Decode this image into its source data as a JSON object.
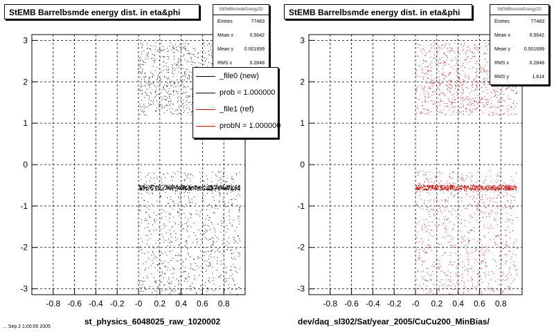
{
  "date_stamp": "... Sep  2 1:00:00 2005",
  "chart_data": [
    {
      "type": "scatter",
      "title": "StEMB Barrelbsmde energy dist. in eta&phi",
      "xlabel": "st_physics_6048025_raw_1020002",
      "ylabel": "",
      "xlim": [
        -1,
        1
      ],
      "ylim": [
        -3.14,
        3.14
      ],
      "x_ticks": [
        "-0.8",
        "-0.6",
        "-0.4",
        "-0.2",
        "-0",
        "0.2",
        "0.4",
        "0.6",
        "0.8"
      ],
      "y_ticks": [
        "-3",
        "-2",
        "-1",
        "0",
        "1",
        "2",
        "3"
      ],
      "grid": true,
      "marker_color": "#000000",
      "stats": {
        "name": "StEMBbsmdeEnergy2D",
        "rows": [
          {
            "label": "Entries",
            "value": "77483"
          },
          {
            "label": "Mean x",
            "value": "0.5642"
          },
          {
            "label": "Mean y",
            "value": "0.001699"
          },
          {
            "label": "RMS x",
            "value": "0.2848"
          }
        ]
      },
      "legend": [
        {
          "label": "_file0 (new)",
          "color": "#000000"
        },
        {
          "label": "prob = 1.000000",
          "color": "#000000"
        },
        {
          "label": "_file1 (ref)",
          "color": "#cc0000"
        },
        {
          "label": "probN = 1.000000",
          "color": "#cc0000"
        }
      ],
      "regions": [
        {
          "x": [
            0,
            0.95
          ],
          "y": [
            -3.14,
            -0.15
          ],
          "note": "dense band at y=-0.55"
        },
        {
          "x": [
            0,
            0.95
          ],
          "y": [
            1.2,
            2.95
          ]
        }
      ]
    },
    {
      "type": "scatter",
      "title": "StEMB Barrelbsmde energy dist. in eta&phi",
      "xlabel": "dev/daq_sl302/Sat/year_2005/CuCu200_MinBias/",
      "ylabel": "",
      "xlim": [
        -1,
        1
      ],
      "ylim": [
        -3.14,
        3.14
      ],
      "x_ticks": [
        "-0.8",
        "-0.6",
        "-0.4",
        "-0.2",
        "-0",
        "0.2",
        "0.4",
        "0.6",
        "0.8"
      ],
      "y_ticks": [
        "-3",
        "-2",
        "-1",
        "0",
        "1",
        "2",
        "3"
      ],
      "grid": true,
      "marker_color": "#cc0000",
      "stats": {
        "name": "StEMBbsmdeEnergy2D",
        "rows": [
          {
            "label": "Entries",
            "value": "77483"
          },
          {
            "label": "Mean x",
            "value": "0.5642"
          },
          {
            "label": "Mean y",
            "value": "0.001699"
          },
          {
            "label": "RMS x",
            "value": "0.2848"
          },
          {
            "label": "RMS y",
            "value": "1.814"
          }
        ]
      },
      "regions": [
        {
          "x": [
            0,
            0.95
          ],
          "y": [
            -3.14,
            -0.15
          ],
          "note": "dense band at y=-0.55"
        },
        {
          "x": [
            0,
            0.95
          ],
          "y": [
            1.2,
            2.95
          ]
        }
      ]
    }
  ]
}
